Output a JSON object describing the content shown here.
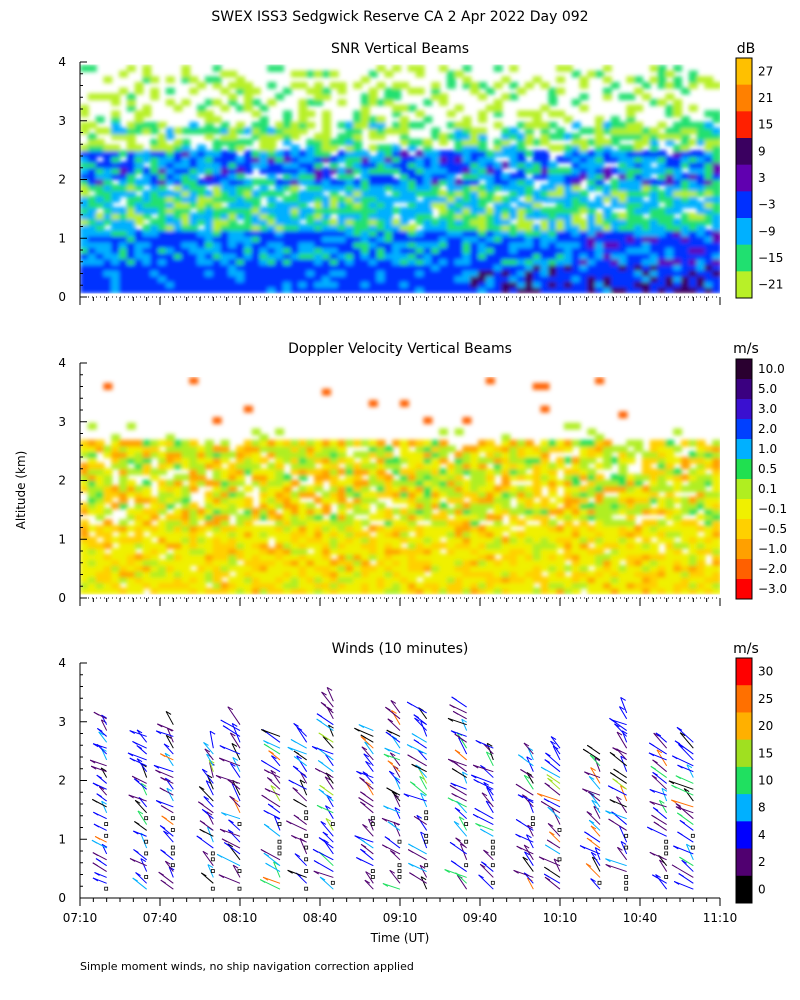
{
  "figure": {
    "title": "SWEX ISS3 Sedgwick Reserve CA   2 Apr 2022 Day 092",
    "ylabel": "Altitude (km)",
    "xlabel": "Time (UT)",
    "footnote": "Simple moment winds, no ship navigation correction applied"
  },
  "chart_data": [
    {
      "type": "heatmap",
      "title": "SNR Vertical Beams",
      "colorbar_unit": "dB",
      "x_ticks": [
        "07:10",
        "07:40",
        "08:10",
        "08:40",
        "09:10",
        "09:40",
        "10:10",
        "10:40",
        "11:10"
      ],
      "y_ticks": [
        "0",
        "1",
        "2",
        "3",
        "4"
      ],
      "xlim": [
        "07:10",
        "11:10"
      ],
      "ylim": [
        0,
        4
      ],
      "colorbar": {
        "labels": [
          "27",
          "21",
          "15",
          "9",
          "3",
          "−3",
          "−9",
          "−15",
          "−21"
        ],
        "colors": [
          "#ffc000",
          "#ff8000",
          "#ff2000",
          "#3a0060",
          "#6000b0",
          "#0030ff",
          "#00b0ff",
          "#20e070",
          "#b8f028"
        ]
      },
      "layers": [
        {
          "altitude_range": [
            0.1,
            0.6
          ],
          "dominant_value": "-3 to 3",
          "note": "strong blue band near surface"
        },
        {
          "altitude_range": [
            0.6,
            1.1
          ],
          "dominant_value": "-3",
          "note": "blue layer, darker toward later times"
        },
        {
          "altitude_range": [
            1.1,
            2.6
          ],
          "dominant_value": "-9 to -15",
          "note": "cyan/green mixed"
        },
        {
          "altitude_range": [
            2.0,
            2.5
          ],
          "dominant_value": "-3",
          "note": "intermittent blue layer"
        },
        {
          "altitude_range": [
            2.6,
            4.0
          ],
          "dominant_value": "-15 to -21",
          "note": "patchy green/yellow-green"
        }
      ]
    },
    {
      "type": "heatmap",
      "title": "Doppler Velocity Vertical Beams",
      "colorbar_unit": "m/s",
      "x_ticks": [
        "07:10",
        "07:40",
        "08:10",
        "08:40",
        "09:10",
        "09:40",
        "10:10",
        "10:40",
        "11:10"
      ],
      "y_ticks": [
        "0",
        "1",
        "2",
        "3",
        "4"
      ],
      "xlim": [
        "07:10",
        "11:10"
      ],
      "ylim": [
        0,
        4
      ],
      "colorbar": {
        "labels": [
          "10.0",
          "5.0",
          "3.0",
          "2.0",
          "1.0",
          "0.5",
          "0.1",
          "−0.1",
          "−0.5",
          "−1.0",
          "−2.0",
          "−3.0"
        ],
        "colors": [
          "#2a0030",
          "#3a0080",
          "#3a10d0",
          "#0040ff",
          "#00b0ff",
          "#20e050",
          "#b0ee20",
          "#f0f000",
          "#ffd000",
          "#ffa000",
          "#ff6000",
          "#ff0000"
        ]
      },
      "layers": [
        {
          "altitude_range": [
            0.1,
            1.2
          ],
          "dominant_value": "-0.1",
          "note": "yellow, near-zero downward"
        },
        {
          "altitude_range": [
            1.2,
            2.7
          ],
          "dominant_value": "0.1 to -0.5",
          "note": "mixed green/yellow/orange"
        },
        {
          "altitude_range": [
            2.7,
            4.0
          ],
          "dominant_value": "sparse",
          "note": "few scattered cells"
        }
      ]
    },
    {
      "type": "scatter",
      "title": "Winds (10 minutes)",
      "colorbar_unit": "m/s",
      "x_ticks": [
        "07:10",
        "07:40",
        "08:10",
        "08:40",
        "09:10",
        "09:40",
        "10:10",
        "10:40",
        "11:10"
      ],
      "y_ticks": [
        "0",
        "1",
        "2",
        "3",
        "4"
      ],
      "xlim": [
        "07:10",
        "11:10"
      ],
      "ylim": [
        0,
        4
      ],
      "colorbar": {
        "labels": [
          "30",
          "25",
          "20",
          "15",
          "10",
          "8",
          "4",
          "2",
          "0"
        ],
        "colors": [
          "#ff0000",
          "#ff7000",
          "#ffb000",
          "#a0e020",
          "#20e060",
          "#00b0ff",
          "#0000ff",
          "#500070",
          "#000000"
        ]
      },
      "profile_times": [
        "07:20",
        "07:35",
        "07:45",
        "08:00",
        "08:10",
        "08:25",
        "08:35",
        "08:45",
        "09:00",
        "09:10",
        "09:20",
        "09:35",
        "09:45",
        "10:00",
        "10:10",
        "10:25",
        "10:35",
        "10:50",
        "11:00"
      ],
      "mean_speed_m_s": [
        3,
        4,
        4,
        5,
        6,
        5,
        5,
        5,
        4,
        4,
        5,
        5,
        5,
        5,
        5,
        5,
        5,
        5,
        6
      ],
      "mean_direction_deg": [
        320,
        320,
        320,
        330,
        320,
        320,
        320,
        320,
        320,
        320,
        320,
        320,
        320,
        320,
        320,
        320,
        320,
        320,
        320
      ]
    }
  ]
}
